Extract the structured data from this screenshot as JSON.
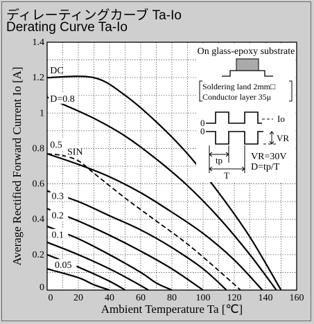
{
  "header": {
    "title_ja": "ディレーティングカーブ Ta-Io",
    "title_en": "Derating Curve Ta-Io"
  },
  "chart_data": {
    "type": "line",
    "xlabel": "Ambient Temperature  Ta  [℃]",
    "ylabel": "Average Rectified Forward Current  Io  [A]",
    "xlim": [
      0,
      160
    ],
    "ylim": [
      0,
      1.4
    ],
    "x_ticks": [
      0,
      20,
      40,
      60,
      80,
      100,
      120,
      140,
      160
    ],
    "y_ticks": [
      0,
      0.2,
      0.4,
      0.6,
      0.8,
      1,
      1.2,
      1.4
    ],
    "x_tick_labels": [
      "0",
      "20",
      "40",
      "60",
      "80",
      "100",
      "120",
      "140",
      "160"
    ],
    "y_tick_labels": [
      "0",
      "0.2",
      "0.4",
      "0.6",
      "0.8",
      "1",
      "1.2",
      "1.4"
    ],
    "grid": true,
    "series": [
      {
        "name": "DC",
        "style": "solid",
        "x": [
          0,
          30,
          50,
          70,
          90,
          110,
          130,
          150
        ],
        "y": [
          1.2,
          1.2,
          1.1,
          0.95,
          0.77,
          0.55,
          0.3,
          0
        ]
      },
      {
        "name": "D=0.8",
        "style": "solid",
        "x": [
          0,
          10,
          30,
          50,
          70,
          90,
          110,
          130,
          147
        ],
        "y": [
          1.09,
          1.05,
          0.97,
          0.87,
          0.74,
          0.59,
          0.41,
          0.2,
          0
        ]
      },
      {
        "name": "0.5",
        "style": "solid",
        "x": [
          0,
          20,
          40,
          60,
          80,
          100,
          120,
          138
        ],
        "y": [
          0.77,
          0.71,
          0.64,
          0.55,
          0.44,
          0.32,
          0.17,
          0
        ]
      },
      {
        "name": "SIN",
        "style": "dashed",
        "x": [
          0,
          10,
          20,
          30,
          50,
          70,
          90,
          110,
          124
        ],
        "y": [
          0.77,
          0.76,
          0.73,
          0.66,
          0.52,
          0.39,
          0.26,
          0.11,
          0
        ]
      },
      {
        "name": "0.3",
        "style": "solid",
        "x": [
          0,
          20,
          40,
          60,
          80,
          100,
          115
        ],
        "y": [
          0.56,
          0.5,
          0.42,
          0.34,
          0.24,
          0.12,
          0
        ]
      },
      {
        "name": "0.2",
        "style": "solid",
        "x": [
          0,
          20,
          40,
          60,
          80,
          100
        ],
        "y": [
          0.46,
          0.39,
          0.31,
          0.22,
          0.12,
          0
        ]
      },
      {
        "name": "0.1",
        "style": "solid",
        "x": [
          0,
          20,
          40,
          60,
          70,
          80
        ],
        "y": [
          0.36,
          0.29,
          0.2,
          0.1,
          0.04,
          0
        ]
      },
      {
        "name": "",
        "style": "solid",
        "x": [
          0,
          20,
          40,
          55,
          65
        ],
        "y": [
          0.27,
          0.2,
          0.12,
          0.05,
          0
        ]
      },
      {
        "name": "0.05",
        "style": "solid",
        "x": [
          0,
          20,
          40,
          50
        ],
        "y": [
          0.2,
          0.13,
          0.05,
          0
        ]
      },
      {
        "name": "",
        "style": "solid",
        "x": [
          0,
          20,
          30,
          40
        ],
        "y": [
          0.12,
          0.07,
          0.03,
          0
        ]
      }
    ],
    "annotations": {
      "substrate": "On glass-epoxy substrate",
      "land": "Soldering land 2mm□",
      "layer": "Conductor layer 35μ",
      "io": "Io",
      "zero_top": "0",
      "zero_bottom": "0",
      "vr": "VR",
      "tp": "tp",
      "t": "T",
      "vr_eq": "VR=30V",
      "d_eq": "D=tp/T"
    }
  }
}
